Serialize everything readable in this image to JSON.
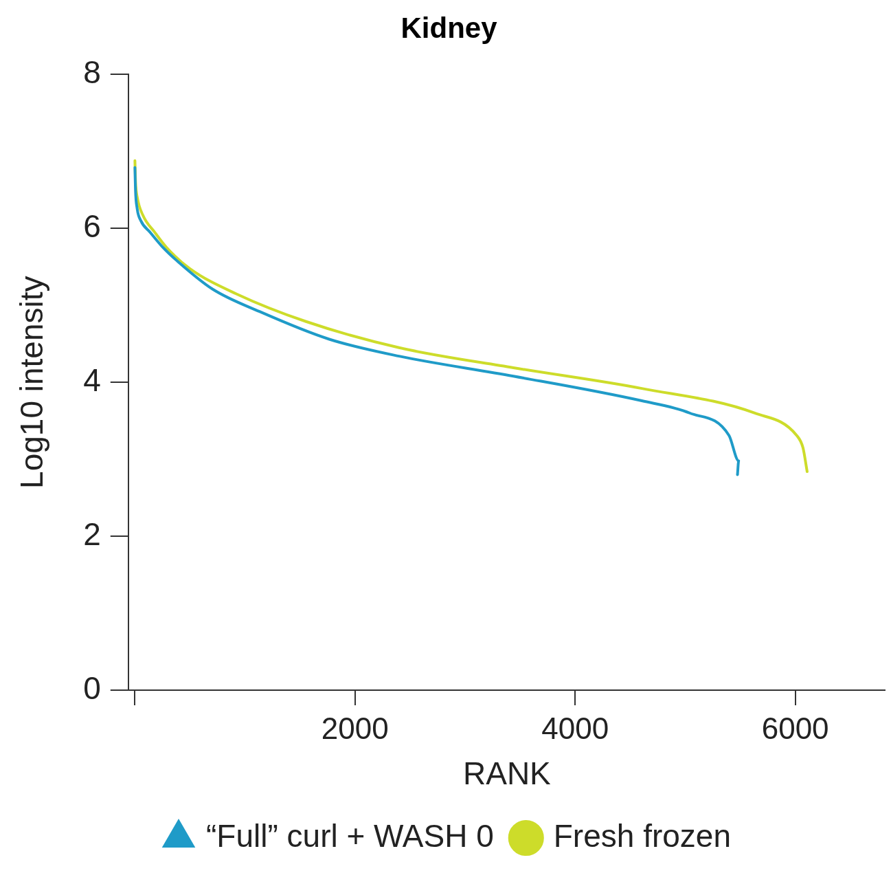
{
  "chart_data": {
    "type": "line",
    "title": "Kidney",
    "xlabel": "RANK",
    "ylabel": "Log10 intensity",
    "xlim": [
      -60,
      6820
    ],
    "xticks": [
      {
        "value": 0,
        "label": null
      },
      2000,
      4000,
      6000
    ],
    "ylim": [
      0,
      8
    ],
    "yticks": [
      0,
      2,
      4,
      6,
      8
    ],
    "grid": false,
    "legend": "bottom",
    "line_style": "solid",
    "series": [
      {
        "name": "“Full” curl + WASH 0",
        "color": "#1f9bc8",
        "x": [
          0,
          5,
          20,
          54,
          138,
          244,
          390,
          707,
          1132,
          1766,
          2400,
          3439,
          4606,
          5043,
          5398,
          5486,
          5475
        ],
        "values": [
          6.79,
          6.5,
          6.26,
          6.1,
          5.95,
          5.77,
          5.57,
          5.21,
          4.92,
          4.56,
          4.34,
          4.08,
          3.76,
          3.6,
          3.31,
          2.98,
          2.8
        ]
      },
      {
        "name": "Fresh frozen",
        "color": "#cddc2a",
        "x": [
          0,
          6,
          22,
          73,
          180,
          289,
          497,
          921,
          1555,
          2400,
          3439,
          4606,
          5632,
          6013,
          6070,
          6108
        ],
        "values": [
          6.88,
          6.6,
          6.4,
          6.17,
          5.95,
          5.75,
          5.48,
          5.15,
          4.79,
          4.45,
          4.19,
          3.92,
          3.6,
          3.31,
          3.15,
          2.84
        ]
      }
    ]
  }
}
